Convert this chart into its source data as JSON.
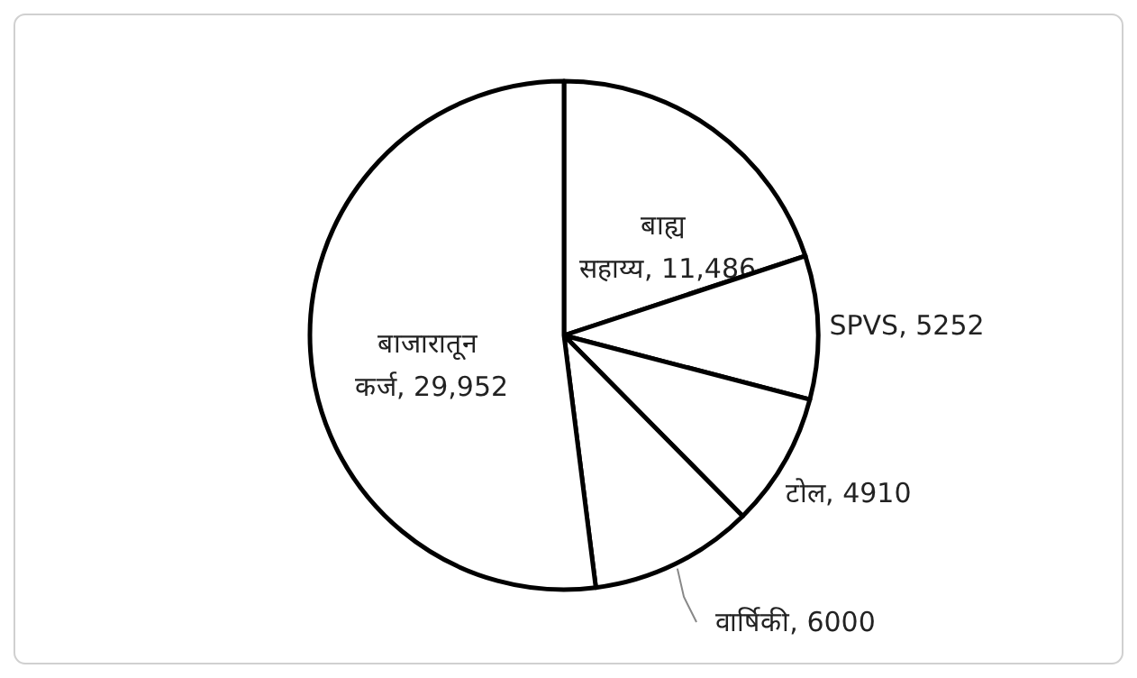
{
  "chart_data": {
    "type": "pie",
    "categories": [
      "बाह्य सहाय्य",
      "SPVS",
      "टोल",
      "वार्षिकी",
      "बाजारातून कर्ज"
    ],
    "values": [
      11486,
      5252,
      4910,
      6000,
      29952
    ],
    "value_labels": [
      "11,486",
      "5252",
      "4910",
      "6000",
      "29,952"
    ],
    "colors": [
      "#ffffff",
      "#ffffff",
      "#ffffff",
      "#ffffff",
      "#ffffff"
    ]
  }
}
